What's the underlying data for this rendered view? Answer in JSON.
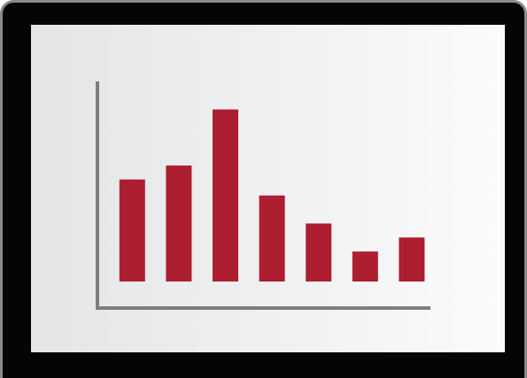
{
  "chart_data": {
    "type": "bar",
    "categories": [
      null,
      null,
      null,
      null,
      null,
      null,
      null
    ],
    "values": [
      51,
      58,
      86,
      43,
      29,
      15,
      22
    ],
    "color": "#ad1f30",
    "ylim": [
      0,
      100
    ]
  }
}
